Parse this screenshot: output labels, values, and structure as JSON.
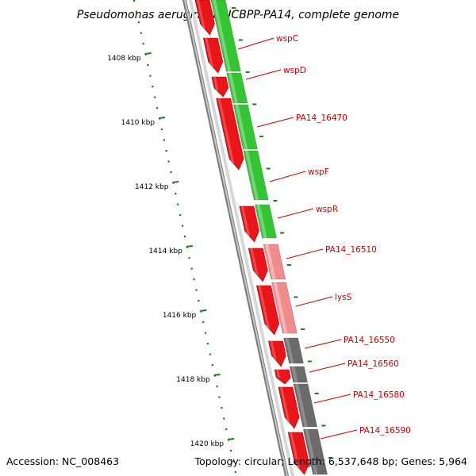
{
  "title": "Pseudomonas aeruginosa UCBPP-PA14, complete genome",
  "footer": {
    "accession": "Accession: NC_008463",
    "stats": "Topology: circular; Length: 6,537,648 bp; Genes: 5,964"
  },
  "scale_labels": [
    "1408 kbp",
    "1410 kbp",
    "1412 kbp",
    "1414 kbp",
    "1416 kbp",
    "1418 kbp",
    "1420 kbp"
  ],
  "colors": {
    "forward_cds": "#e8161b",
    "reverse_cds": "#34c534",
    "reverse_cds_light": "#f08c8c",
    "other_feature": "#6b6b6b",
    "backbone": "#8a8a8a",
    "tick": "#1f7a1f",
    "label": "#cc0000"
  },
  "genes": [
    {
      "name": "wspC",
      "strand": "-",
      "color": "green"
    },
    {
      "name": "wspD",
      "strand": "-",
      "color": "green"
    },
    {
      "name": "PA14_16470",
      "strand": "-",
      "color": "green"
    },
    {
      "name": "wspF",
      "strand": "-",
      "color": "green"
    },
    {
      "name": "wspR",
      "strand": "-",
      "color": "green"
    },
    {
      "name": "PA14_16510",
      "strand": "-",
      "color": "pink"
    },
    {
      "name": "lysS",
      "strand": "-",
      "color": "pink"
    },
    {
      "name": "PA14_16550",
      "strand": "-",
      "color": "gray"
    },
    {
      "name": "PA14_16560",
      "strand": "-",
      "color": "gray"
    },
    {
      "name": "PA14_16580",
      "strand": "-",
      "color": "gray"
    },
    {
      "name": "PA14_16590",
      "strand": "-",
      "color": "gray"
    }
  ]
}
